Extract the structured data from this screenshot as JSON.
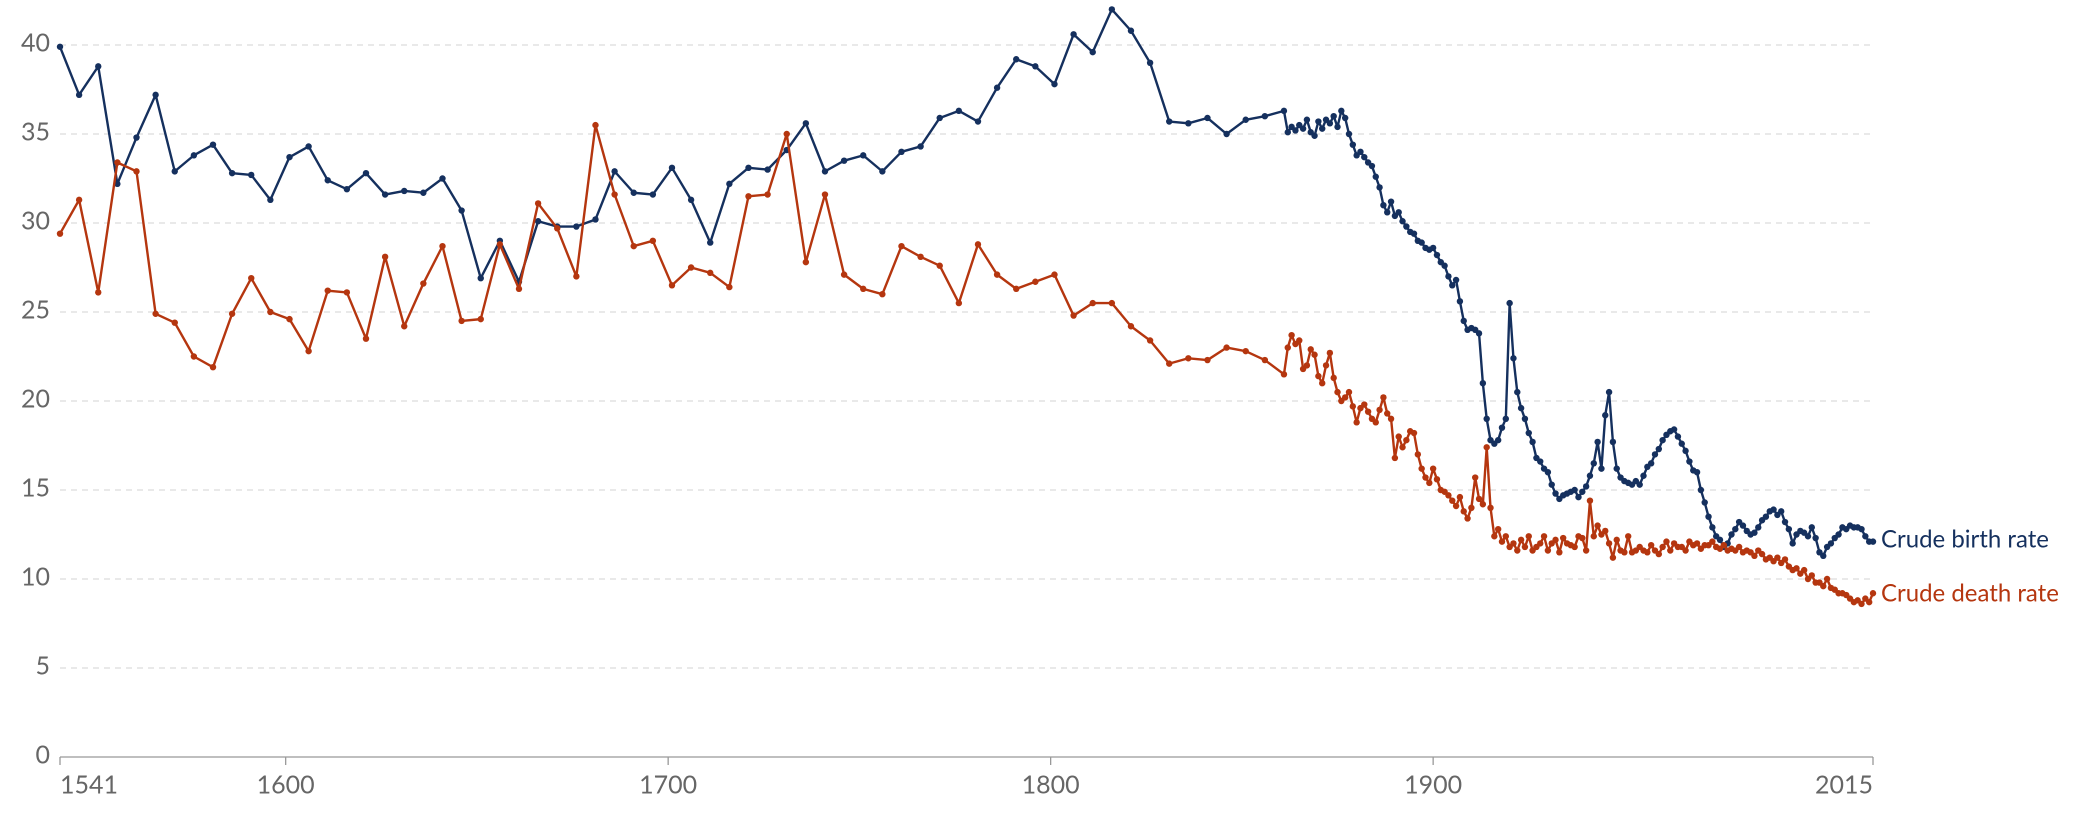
{
  "chart_data": {
    "type": "line",
    "x": [
      1541,
      1546,
      1551,
      1556,
      1561,
      1566,
      1571,
      1576,
      1581,
      1586,
      1591,
      1596,
      1601,
      1606,
      1611,
      1616,
      1621,
      1626,
      1631,
      1636,
      1641,
      1646,
      1651,
      1656,
      1661,
      1666,
      1671,
      1676,
      1681,
      1686,
      1691,
      1696,
      1701,
      1706,
      1711,
      1716,
      1721,
      1726,
      1731,
      1736,
      1741,
      1746,
      1751,
      1756,
      1761,
      1766,
      1771,
      1776,
      1781,
      1786,
      1791,
      1796,
      1801,
      1806,
      1811,
      1816,
      1821,
      1826,
      1831,
      1836,
      1841,
      1846,
      1851,
      1856,
      1861,
      1862,
      1863,
      1864,
      1865,
      1866,
      1867,
      1868,
      1869,
      1870,
      1871,
      1872,
      1873,
      1874,
      1875,
      1876,
      1877,
      1878,
      1879,
      1880,
      1881,
      1882,
      1883,
      1884,
      1885,
      1886,
      1887,
      1888,
      1889,
      1890,
      1891,
      1892,
      1893,
      1894,
      1895,
      1896,
      1897,
      1898,
      1899,
      1900,
      1901,
      1902,
      1903,
      1904,
      1905,
      1906,
      1907,
      1908,
      1909,
      1910,
      1911,
      1912,
      1913,
      1914,
      1915,
      1916,
      1917,
      1918,
      1919,
      1920,
      1921,
      1922,
      1923,
      1924,
      1925,
      1926,
      1927,
      1928,
      1929,
      1930,
      1931,
      1932,
      1933,
      1934,
      1935,
      1936,
      1937,
      1938,
      1939,
      1940,
      1941,
      1942,
      1943,
      1944,
      1945,
      1946,
      1947,
      1948,
      1949,
      1950,
      1951,
      1952,
      1953,
      1954,
      1955,
      1956,
      1957,
      1958,
      1959,
      1960,
      1961,
      1962,
      1963,
      1964,
      1965,
      1966,
      1967,
      1968,
      1969,
      1970,
      1971,
      1972,
      1973,
      1974,
      1975,
      1976,
      1977,
      1978,
      1979,
      1980,
      1981,
      1982,
      1983,
      1984,
      1985,
      1986,
      1987,
      1988,
      1989,
      1990,
      1991,
      1992,
      1993,
      1994,
      1995,
      1996,
      1997,
      1998,
      1999,
      2000,
      2001,
      2002,
      2003,
      2004,
      2005,
      2006,
      2007,
      2008,
      2009,
      2010,
      2011,
      2012,
      2013,
      2014,
      2015
    ],
    "series": [
      {
        "name": "Crude birth rate",
        "color": "#15305e",
        "values": [
          39.9,
          37.2,
          38.8,
          32.2,
          34.8,
          37.2,
          32.9,
          33.8,
          34.4,
          32.8,
          32.7,
          31.3,
          33.7,
          34.3,
          32.4,
          31.9,
          32.8,
          31.6,
          31.8,
          31.7,
          32.5,
          30.7,
          26.9,
          29.0,
          26.7,
          30.1,
          29.8,
          29.8,
          30.2,
          32.9,
          31.7,
          31.6,
          33.1,
          31.3,
          28.9,
          32.2,
          33.1,
          33.0,
          34.1,
          35.6,
          32.9,
          33.5,
          33.8,
          32.9,
          34.0,
          34.3,
          35.9,
          36.3,
          35.7,
          37.6,
          39.2,
          38.8,
          37.8,
          40.6,
          39.6,
          42.0,
          40.8,
          39.0,
          35.7,
          35.6,
          35.9,
          35.0,
          35.8,
          36.0,
          36.3,
          35.1,
          35.4,
          35.2,
          35.5,
          35.3,
          35.8,
          35.1,
          34.9,
          35.7,
          35.3,
          35.8,
          35.6,
          36.0,
          35.4,
          36.3,
          35.9,
          35.0,
          34.4,
          33.8,
          34.0,
          33.7,
          33.4,
          33.2,
          32.6,
          32.0,
          31.0,
          30.6,
          31.2,
          30.4,
          30.6,
          30.1,
          29.8,
          29.5,
          29.4,
          29.0,
          28.9,
          28.6,
          28.5,
          28.6,
          28.2,
          27.8,
          27.6,
          27.0,
          26.5,
          26.8,
          25.6,
          24.5,
          24.0,
          24.1,
          24.0,
          23.8,
          21.0,
          19.0,
          17.8,
          17.6,
          17.8,
          18.5,
          19.0,
          25.5,
          22.4,
          20.5,
          19.6,
          19.0,
          18.2,
          17.7,
          16.8,
          16.6,
          16.2,
          16.0,
          15.3,
          14.8,
          14.5,
          14.7,
          14.8,
          14.9,
          15.0,
          14.6,
          14.9,
          15.2,
          15.8,
          16.5,
          17.7,
          16.2,
          19.2,
          20.5,
          17.7,
          16.2,
          15.7,
          15.5,
          15.4,
          15.3,
          15.5,
          15.3,
          15.8,
          16.3,
          16.5,
          17.0,
          17.3,
          17.8,
          18.1,
          18.3,
          18.4,
          18.0,
          17.6,
          17.2,
          16.6,
          16.1,
          16.0,
          15.0,
          14.3,
          13.5,
          12.9,
          12.4,
          12.2,
          11.8,
          12.0,
          12.5,
          12.8,
          13.2,
          13.0,
          12.7,
          12.5,
          12.6,
          12.9,
          13.3,
          13.5,
          13.8,
          13.9,
          13.6,
          13.8,
          13.2,
          12.8,
          12.0,
          12.5,
          12.7,
          12.6,
          12.4,
          12.9,
          12.3,
          11.5,
          11.3,
          11.8,
          12.0,
          12.3,
          12.5,
          12.9,
          12.8,
          13.0,
          12.9,
          12.9,
          12.8,
          12.4,
          12.1,
          12.1
        ]
      },
      {
        "name": "Crude death rate",
        "color": "#b5360f",
        "values": [
          29.4,
          31.3,
          26.1,
          33.4,
          32.9,
          24.9,
          24.4,
          22.5,
          21.9,
          24.9,
          26.9,
          25.0,
          24.6,
          22.8,
          26.2,
          26.1,
          23.5,
          28.1,
          24.2,
          26.6,
          28.7,
          24.5,
          24.6,
          28.8,
          26.3,
          31.1,
          29.7,
          27.0,
          35.5,
          31.6,
          28.7,
          29.0,
          26.5,
          27.5,
          27.2,
          26.4,
          31.5,
          31.6,
          35.0,
          27.8,
          31.6,
          27.1,
          26.3,
          26.0,
          28.7,
          28.1,
          27.6,
          25.5,
          28.8,
          27.1,
          26.3,
          26.7,
          27.1,
          24.8,
          25.5,
          25.5,
          24.2,
          23.4,
          22.1,
          22.4,
          22.3,
          23.0,
          22.8,
          22.3,
          21.5,
          23.0,
          23.7,
          23.2,
          23.4,
          21.8,
          22.0,
          22.9,
          22.6,
          21.4,
          21.0,
          22.0,
          22.7,
          21.3,
          20.5,
          20.0,
          20.2,
          20.5,
          19.7,
          18.8,
          19.6,
          19.8,
          19.4,
          19.0,
          18.8,
          19.5,
          20.2,
          19.3,
          19.0,
          16.8,
          18.0,
          17.4,
          17.8,
          18.3,
          18.2,
          17.0,
          16.2,
          15.7,
          15.4,
          16.2,
          15.6,
          15.0,
          14.9,
          14.7,
          14.4,
          14.1,
          14.6,
          13.8,
          13.4,
          14.0,
          15.7,
          14.5,
          14.2,
          17.4,
          14.0,
          12.4,
          12.8,
          12.1,
          12.4,
          11.8,
          12.0,
          11.6,
          12.2,
          11.8,
          12.4,
          11.6,
          11.8,
          12.0,
          12.4,
          11.6,
          12.0,
          12.2,
          11.5,
          12.3,
          12.0,
          11.9,
          11.8,
          12.4,
          12.3,
          11.6,
          14.4,
          12.4,
          13.0,
          12.5,
          12.7,
          12.0,
          11.2,
          12.2,
          11.6,
          11.5,
          12.4,
          11.5,
          11.6,
          11.8,
          11.6,
          11.5,
          11.9,
          11.6,
          11.4,
          11.8,
          12.1,
          11.6,
          12.0,
          11.8,
          11.8,
          11.6,
          12.1,
          11.9,
          12.0,
          11.7,
          11.9,
          11.9,
          12.1,
          11.8,
          11.7,
          11.9,
          11.6,
          11.7,
          11.6,
          11.8,
          11.5,
          11.6,
          11.5,
          11.3,
          11.6,
          11.4,
          11.1,
          11.2,
          11.0,
          11.2,
          10.9,
          11.1,
          10.7,
          10.5,
          10.6,
          10.3,
          10.5,
          10.0,
          10.2,
          9.8,
          9.8,
          9.6,
          10.0,
          9.5,
          9.4,
          9.2,
          9.2,
          9.1,
          8.9,
          8.7,
          8.8,
          8.6,
          8.9,
          8.7,
          9.2
        ]
      }
    ],
    "xlim": [
      1541,
      2015
    ],
    "xticks": [
      1541,
      1600,
      1700,
      1800,
      1900,
      2015
    ],
    "ylim": [
      0,
      40
    ],
    "yticks": [
      0,
      5,
      10,
      15,
      20,
      25,
      30,
      35,
      40
    ],
    "grid": true
  }
}
